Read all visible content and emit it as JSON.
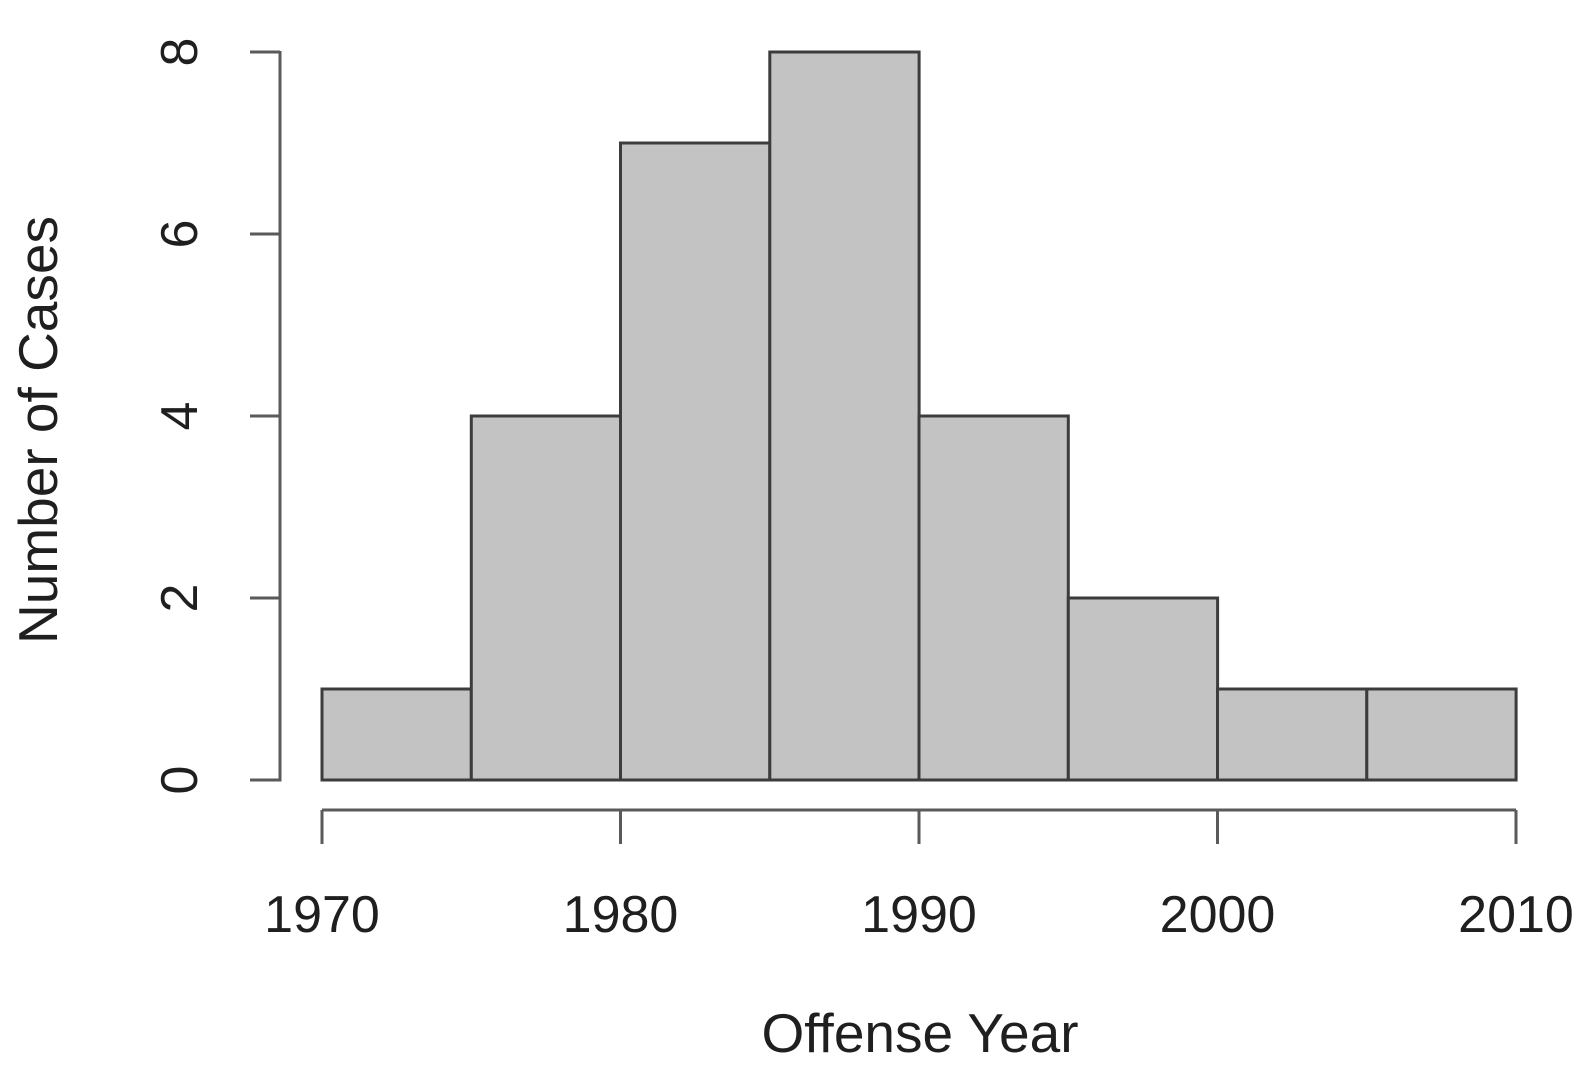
{
  "chart_data": {
    "type": "bar",
    "subtype": "histogram",
    "title": "",
    "xlabel": "Offense Year",
    "ylabel": "Number of Cases",
    "bin_edges": [
      1970,
      1975,
      1980,
      1985,
      1990,
      1995,
      2000,
      2005,
      2010
    ],
    "counts": [
      1,
      4,
      7,
      8,
      4,
      2,
      1,
      1
    ],
    "bins": [
      {
        "start": 1970,
        "end": 1975,
        "count": 1
      },
      {
        "start": 1975,
        "end": 1980,
        "count": 4
      },
      {
        "start": 1980,
        "end": 1985,
        "count": 7
      },
      {
        "start": 1985,
        "end": 1990,
        "count": 8
      },
      {
        "start": 1990,
        "end": 1995,
        "count": 4
      },
      {
        "start": 1995,
        "end": 2000,
        "count": 2
      },
      {
        "start": 2000,
        "end": 2005,
        "count": 1
      },
      {
        "start": 2005,
        "end": 2010,
        "count": 1
      }
    ],
    "x_ticks": [
      1970,
      1980,
      1990,
      2000,
      2010
    ],
    "y_ticks": [
      0,
      2,
      4,
      6,
      8
    ],
    "xlim": [
      1970,
      2010
    ],
    "ylim": [
      0,
      8
    ],
    "grid": false,
    "legend": "none",
    "colors": {
      "background": "#ffffff",
      "bar_fill": "#c3c3c3",
      "bar_stroke": "#3c3c3c",
      "axis": "#5a5a5a",
      "text": "#1f1f1f"
    }
  }
}
